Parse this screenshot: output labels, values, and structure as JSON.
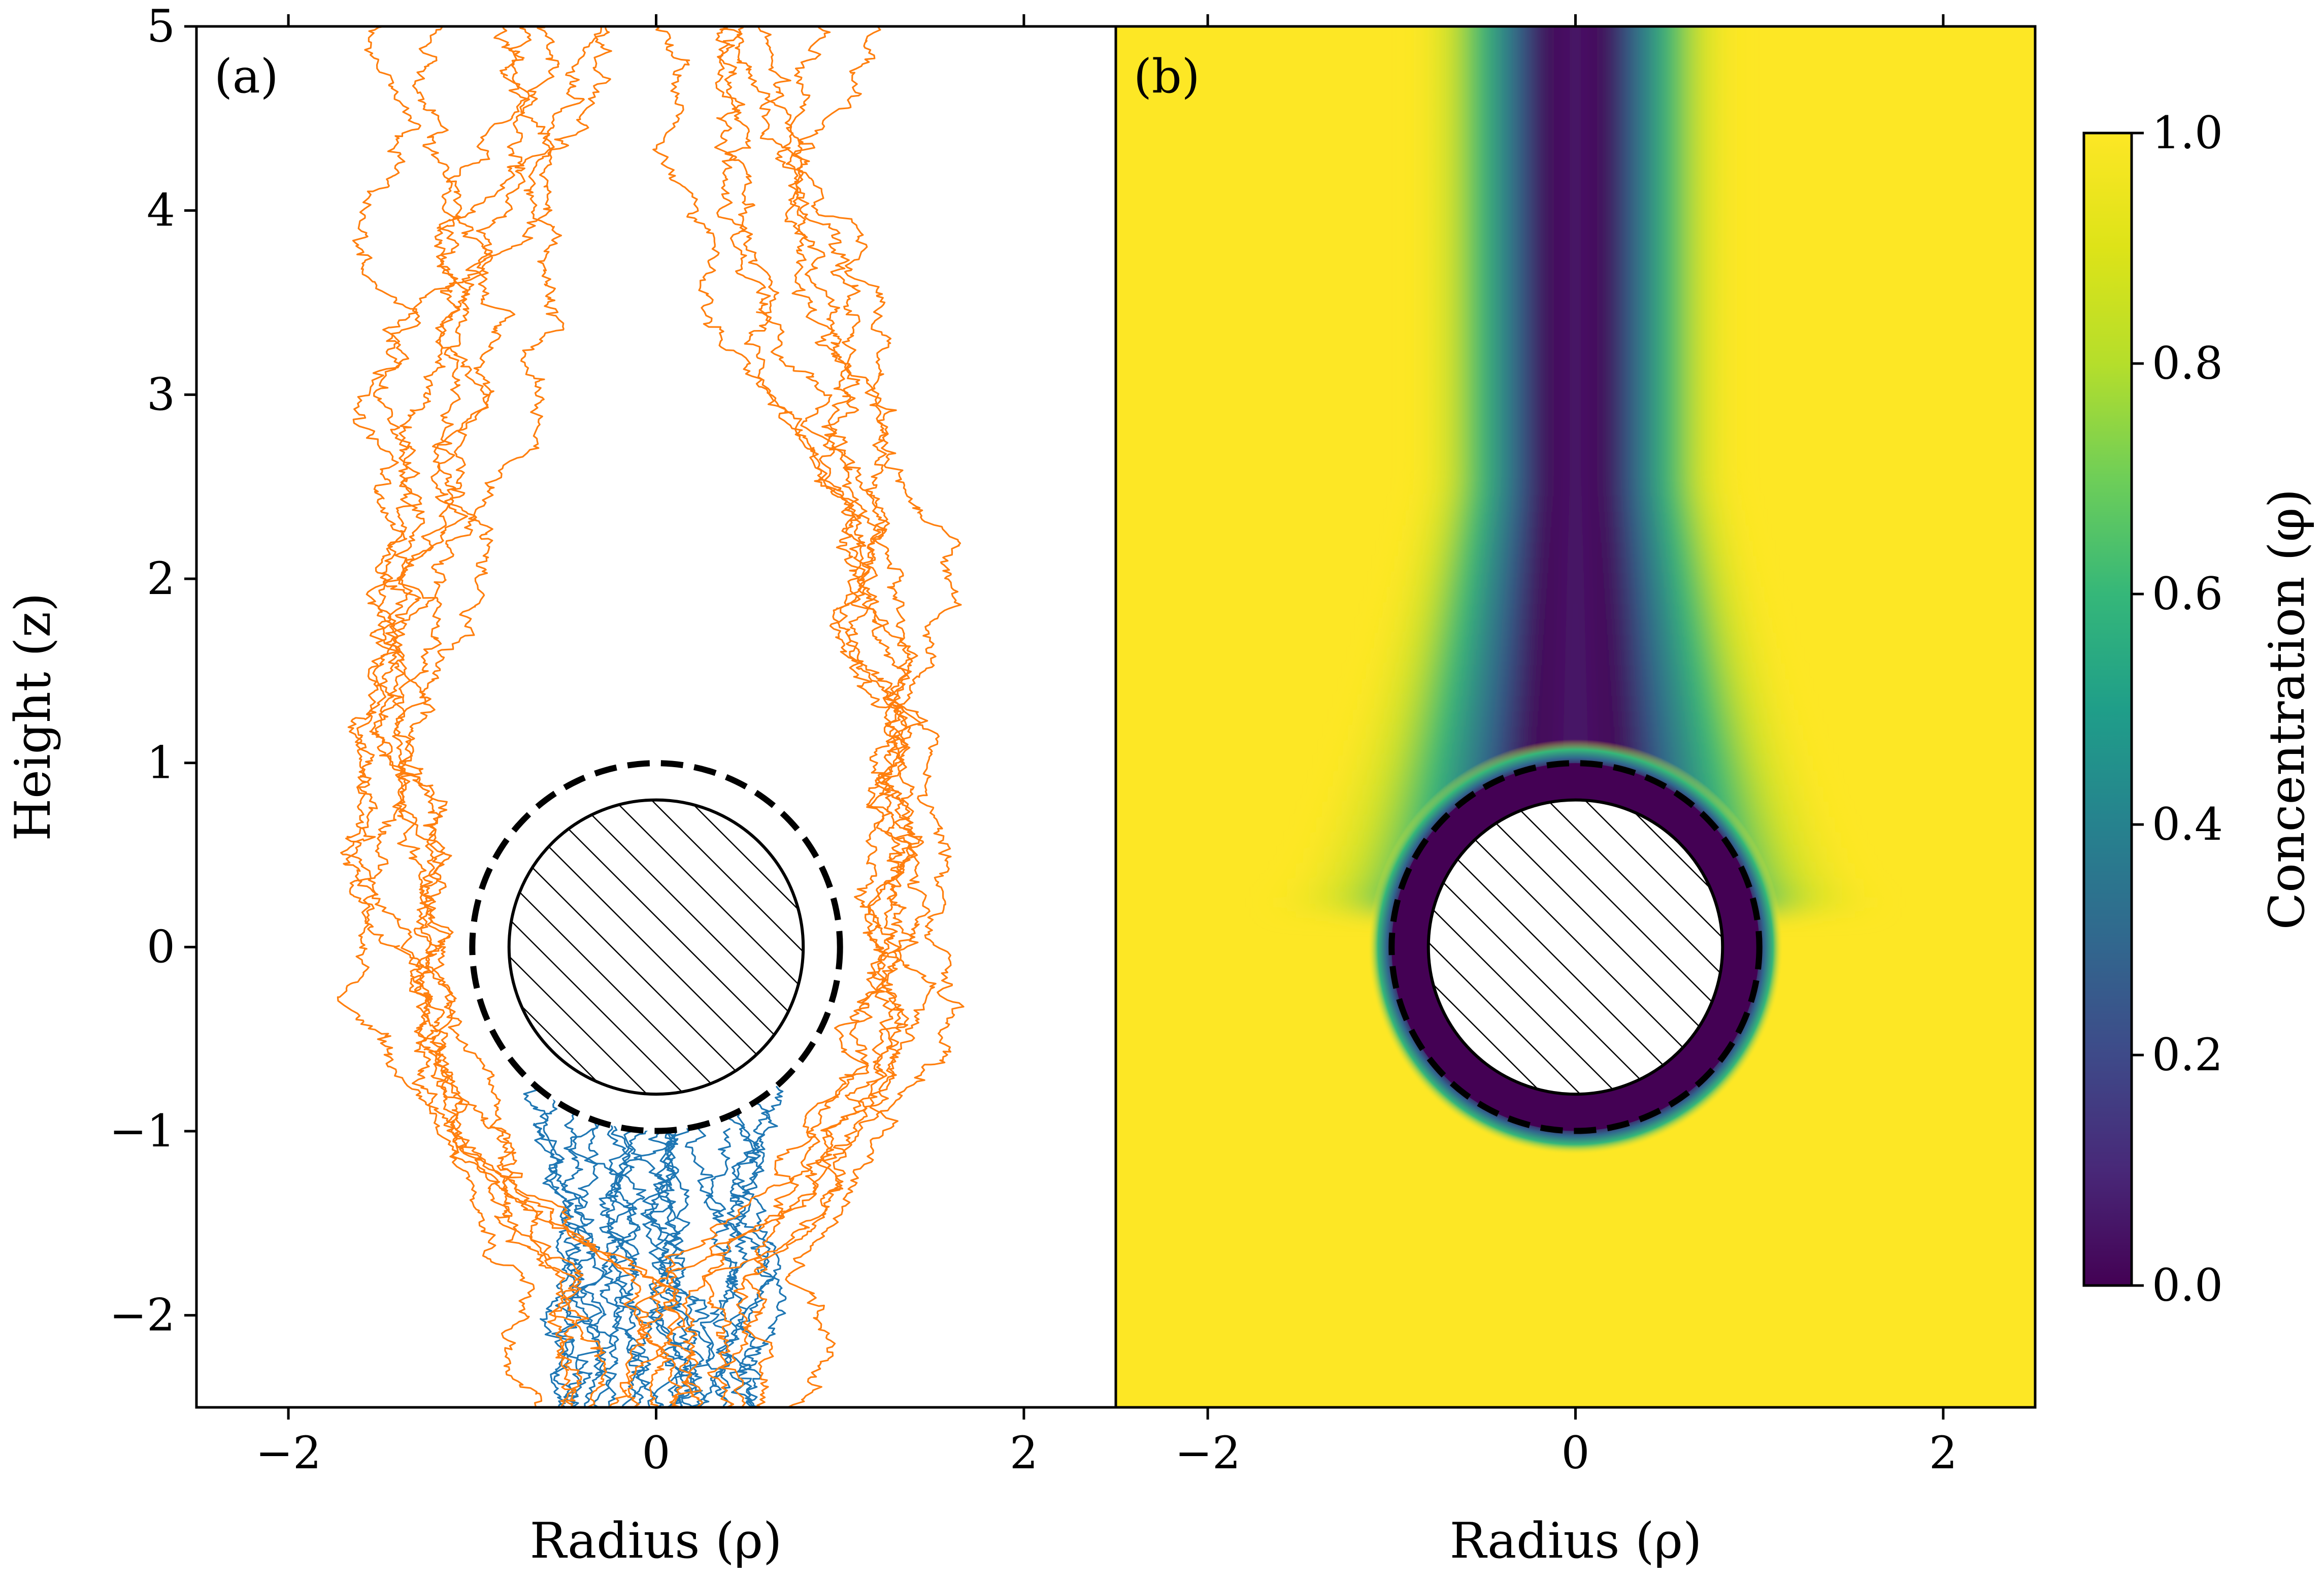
{
  "figure": {
    "panels": [
      {
        "id": "a",
        "label": "(a)",
        "xlabel": "Radius (ρ)"
      },
      {
        "id": "b",
        "label": "(b)",
        "xlabel": "Radius (ρ)"
      }
    ],
    "ylabel": "Height (z)",
    "colorbar": {
      "label": "Concentration (φ)",
      "ticks": [
        "0.0",
        "0.2",
        "0.4",
        "0.6",
        "0.8",
        "1.0"
      ]
    },
    "x_ticks": [
      "−2",
      "0",
      "2"
    ],
    "y_ticks": [
      "−2",
      "−1",
      "0",
      "1",
      "2",
      "3",
      "4",
      "5"
    ],
    "colors": {
      "captured_paths": "#1f77b4",
      "escaping_paths": "#ff7f0e",
      "colormap": "viridis"
    }
  },
  "chart_data": [
    {
      "type": "line",
      "panel": "a",
      "label": "(a)",
      "title": "",
      "xlabel": "Radius (ρ)",
      "ylabel": "Height (z)",
      "xlim": [
        -2.5,
        2.5
      ],
      "ylim": [
        -2.5,
        5
      ],
      "x_ticks": [
        -2,
        0,
        2
      ],
      "y_ticks": [
        -2,
        -1,
        0,
        1,
        2,
        3,
        4,
        5
      ],
      "grid": false,
      "obstacle": {
        "center": [
          0,
          0
        ],
        "solid_radius": 0.8,
        "capture_radius": 1.0,
        "solid_pattern": "hatched",
        "capture_boundary": "dashed"
      },
      "series": [
        {
          "color": "#1f77b4",
          "count": 22,
          "description_values": {
            "start_z": -2.5,
            "end_z": [
              -1.0,
              -0.45
            ],
            "start_x_range": [
              -0.6,
              0.6
            ]
          }
        },
        {
          "color": "#ff7f0e",
          "count": 14,
          "description_values": {
            "start_z": -2.5,
            "end_z": 5,
            "start_x_range": [
              -0.7,
              0.7
            ],
            "max_abs_x": 1.65
          }
        }
      ]
    },
    {
      "type": "heatmap",
      "panel": "b",
      "label": "(b)",
      "title": "",
      "xlabel": "Radius (ρ)",
      "xlim": [
        -2.5,
        2.5
      ],
      "ylim": [
        -2.5,
        5
      ],
      "x_ticks": [
        -2,
        0,
        2
      ],
      "colormap": "viridis",
      "colorbar": {
        "label": "Concentration (φ)",
        "range": [
          0,
          1
        ],
        "ticks": [
          0,
          0.2,
          0.4,
          0.6,
          0.8,
          1.0
        ]
      },
      "obstacle": {
        "center": [
          0,
          0
        ],
        "solid_radius": 0.8,
        "capture_radius": 1.0
      },
      "field_description": {
        "background_value": 1.0,
        "depleted_value": 0.0,
        "wake_direction": "up",
        "wake_half_width_at_top": 0.45,
        "wake_half_width_near_sphere": 0.9
      }
    }
  ]
}
